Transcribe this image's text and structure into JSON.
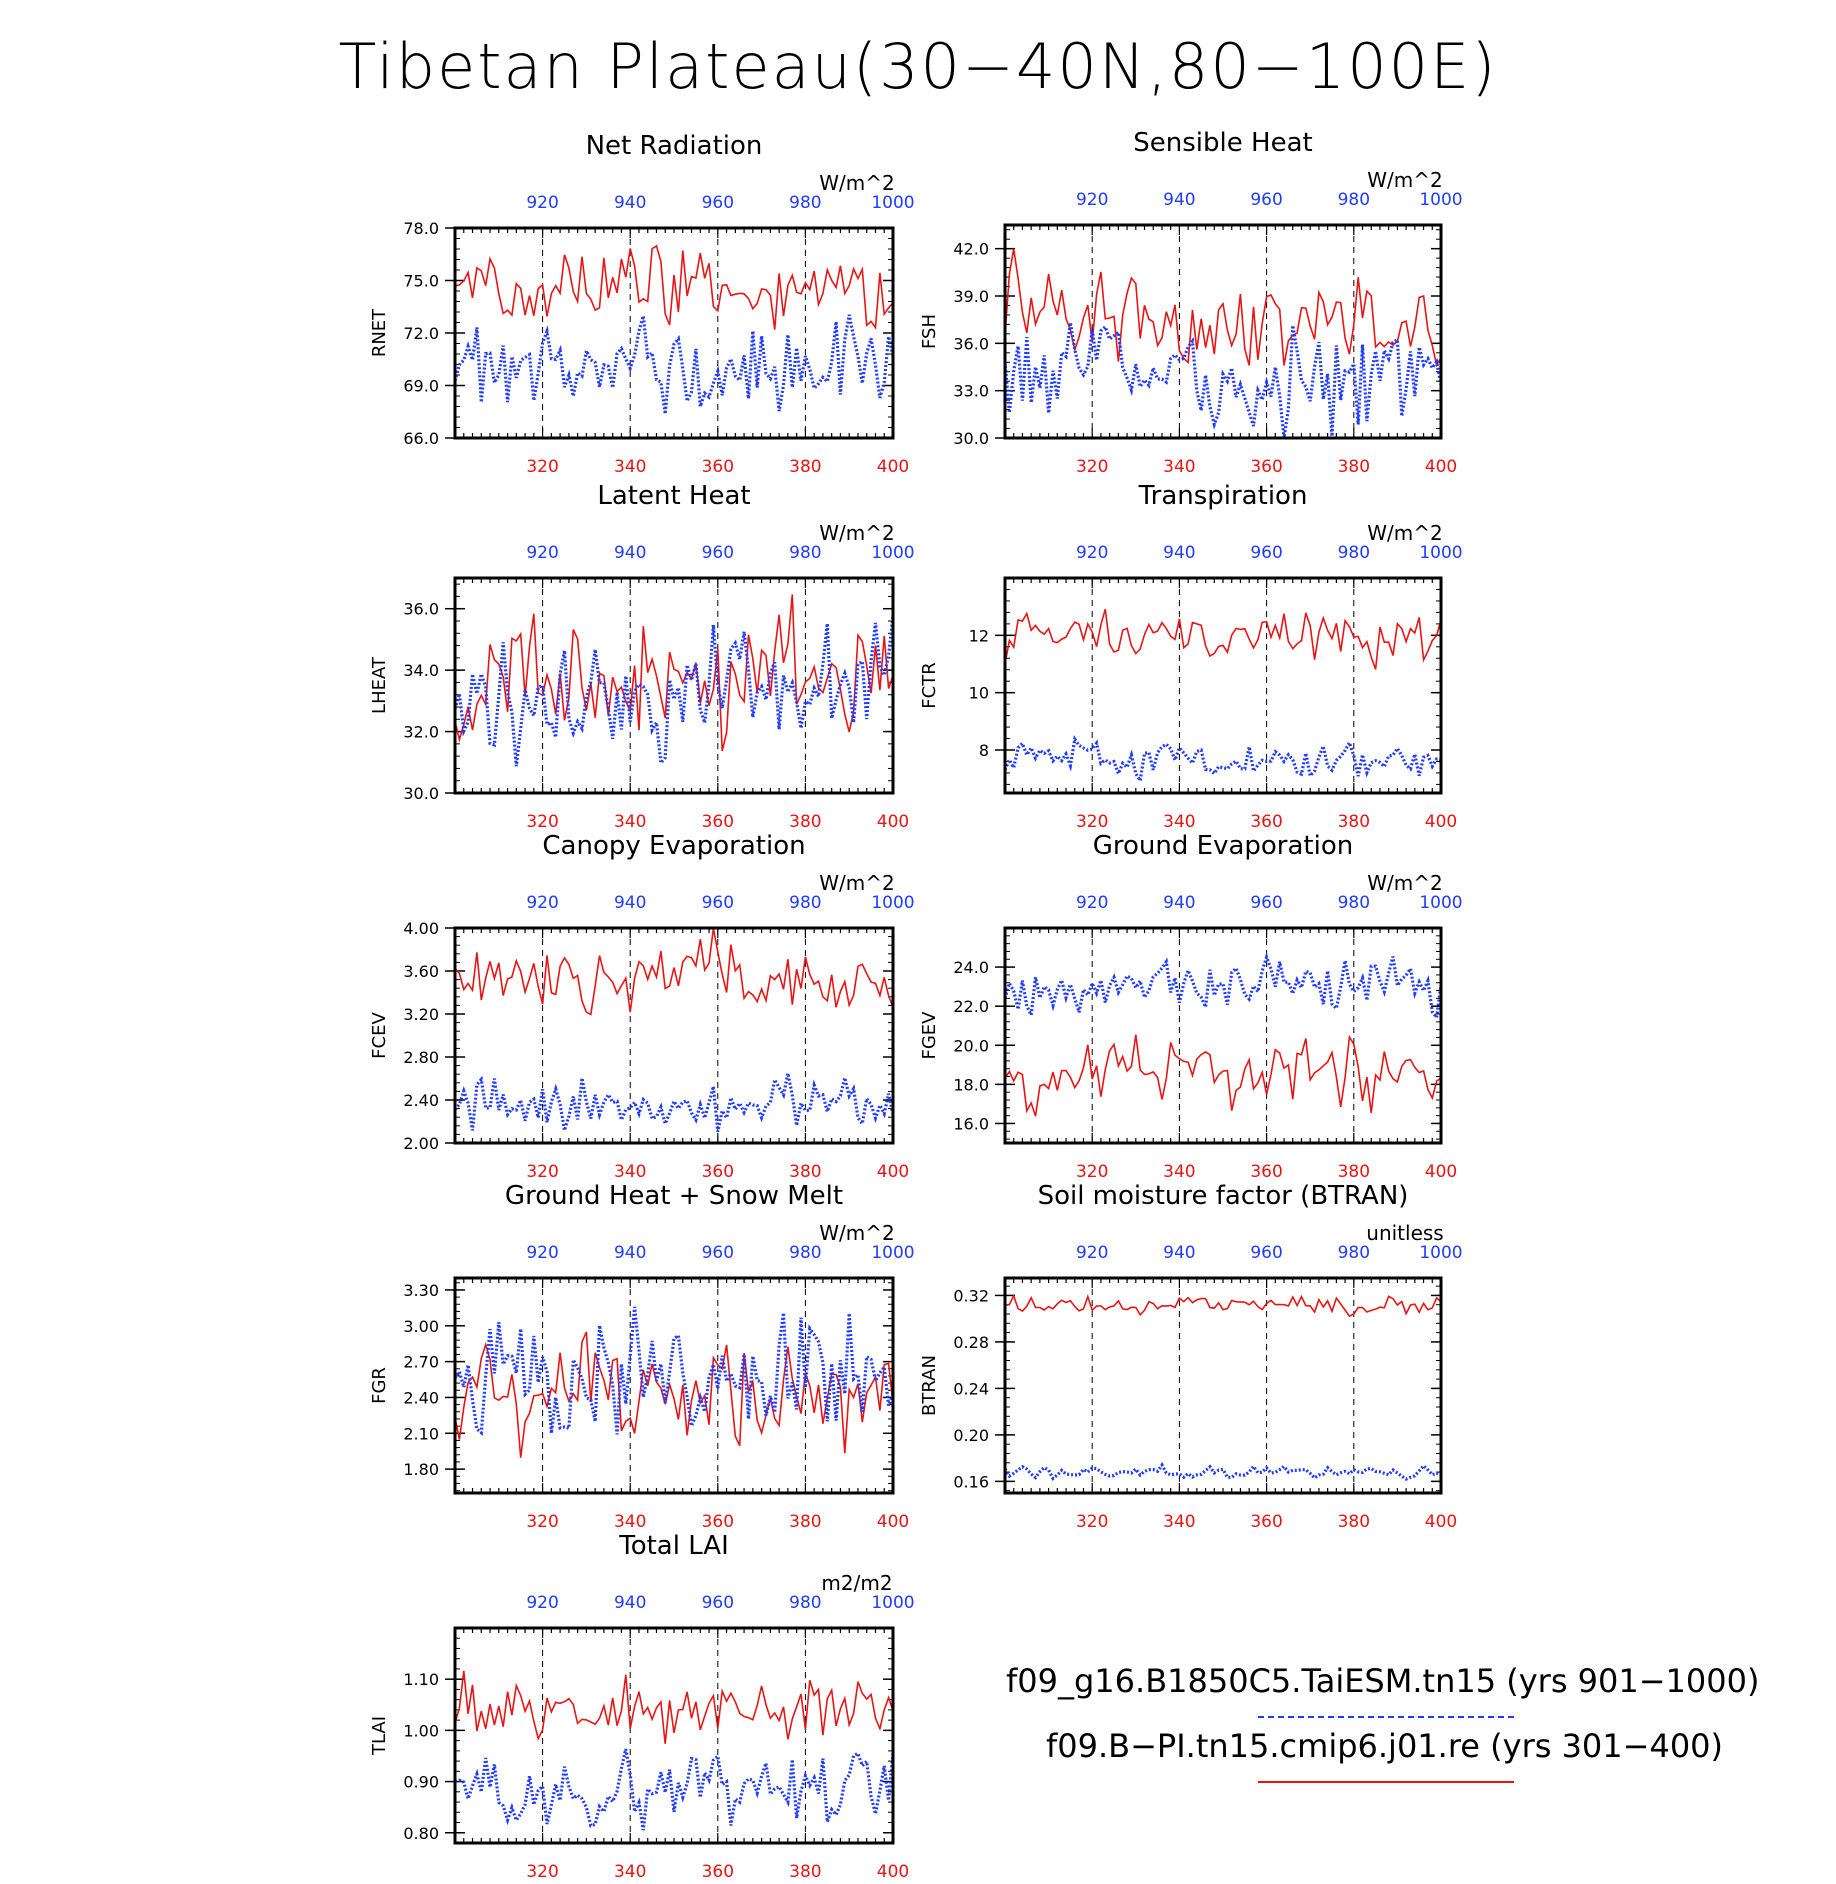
{
  "page": {
    "title": "Tibetan Plateau(30−40N,80−100E)",
    "legend": {
      "case1": {
        "label": "f09_g16.B1850C5.TaiESM.tn15 (yrs 901−1000)",
        "color": "#1f3cff",
        "style": "dashed"
      },
      "case2": {
        "label": "f09.B−PI.tn15.cmip6.j01.re (yrs 301−400)",
        "color": "#e81515",
        "style": "solid"
      }
    }
  },
  "chart_data": [
    {
      "type": "line",
      "title": "Net Radiation",
      "ylabel": "RNET",
      "units": "W/m^2",
      "ylim": [
        66.0,
        78.0
      ],
      "yticks": [
        "66.0",
        "69.0",
        "72.0",
        "75.0",
        "78.0"
      ],
      "x_bottom": {
        "range": [
          300,
          400
        ],
        "ticks": [
          320,
          340,
          360,
          380,
          400
        ]
      },
      "x_top": {
        "range": [
          900,
          1000
        ],
        "ticks": [
          920,
          940,
          960,
          980,
          1000
        ]
      },
      "series": [
        {
          "axis": "bottom",
          "style": "solid",
          "color": "#e81515",
          "mean": 74.6,
          "amp": 1.4,
          "seed": 11
        },
        {
          "axis": "top",
          "style": "dotted",
          "color": "#1f3cff",
          "mean": 70.3,
          "amp": 1.6,
          "seed": 12
        }
      ]
    },
    {
      "type": "line",
      "title": "Sensible Heat",
      "ylabel": "FSH",
      "units": "W/m^2",
      "ylim": [
        30.0,
        43.5
      ],
      "yticks": [
        "30.0",
        "33.0",
        "36.0",
        "39.0",
        "42.0"
      ],
      "x_bottom": {
        "range": [
          300,
          400
        ],
        "ticks": [
          320,
          340,
          360,
          380,
          400
        ]
      },
      "x_top": {
        "range": [
          900,
          1000
        ],
        "ticks": [
          920,
          940,
          960,
          980,
          1000
        ]
      },
      "series": [
        {
          "axis": "bottom",
          "style": "solid",
          "color": "#e81515",
          "mean": 37.6,
          "amp": 1.8,
          "seed": 21
        },
        {
          "axis": "top",
          "style": "dotted",
          "color": "#1f3cff",
          "mean": 34.3,
          "amp": 1.9,
          "seed": 22
        }
      ]
    },
    {
      "type": "line",
      "title": "Latent Heat",
      "ylabel": "LHEAT",
      "units": "W/m^2",
      "ylim": [
        30.0,
        37.0
      ],
      "yticks": [
        "30.0",
        "32.0",
        "34.0",
        "36.0"
      ],
      "x_bottom": {
        "range": [
          300,
          400
        ],
        "ticks": [
          320,
          340,
          360,
          380,
          400
        ]
      },
      "x_top": {
        "range": [
          900,
          1000
        ],
        "ticks": [
          920,
          940,
          960,
          980,
          1000
        ]
      },
      "series": [
        {
          "axis": "bottom",
          "style": "solid",
          "color": "#e81515",
          "mean": 33.9,
          "amp": 1.2,
          "seed": 31
        },
        {
          "axis": "top",
          "style": "dotted",
          "color": "#1f3cff",
          "mean": 33.2,
          "amp": 1.1,
          "seed": 32
        }
      ]
    },
    {
      "type": "line",
      "title": "Transpiration",
      "ylabel": "FCTR",
      "units": "W/m^2",
      "ylim": [
        6.5,
        14.0
      ],
      "yticks": [
        "8",
        "10",
        "12"
      ],
      "x_bottom": {
        "range": [
          300,
          400
        ],
        "ticks": [
          320,
          340,
          360,
          380,
          400
        ]
      },
      "x_top": {
        "range": [
          900,
          1000
        ],
        "ticks": [
          920,
          940,
          960,
          980,
          1000
        ]
      },
      "series": [
        {
          "axis": "bottom",
          "style": "solid",
          "color": "#e81515",
          "mean": 12.0,
          "amp": 0.5,
          "seed": 41
        },
        {
          "axis": "top",
          "style": "dotted",
          "color": "#1f3cff",
          "mean": 7.7,
          "amp": 0.35,
          "seed": 42
        }
      ]
    },
    {
      "type": "line",
      "title": "Canopy Evaporation",
      "ylabel": "FCEV",
      "units": "W/m^2",
      "ylim": [
        2.0,
        4.0
      ],
      "yticks": [
        "2.00",
        "2.40",
        "2.80",
        "3.20",
        "3.60",
        "4.00"
      ],
      "x_bottom": {
        "range": [
          300,
          400
        ],
        "ticks": [
          320,
          340,
          360,
          380,
          400
        ]
      },
      "x_top": {
        "range": [
          900,
          1000
        ],
        "ticks": [
          920,
          940,
          960,
          980,
          1000
        ]
      },
      "series": [
        {
          "axis": "bottom",
          "style": "solid",
          "color": "#e81515",
          "mean": 3.52,
          "amp": 0.2,
          "seed": 51
        },
        {
          "axis": "top",
          "style": "dotted",
          "color": "#1f3cff",
          "mean": 2.34,
          "amp": 0.15,
          "seed": 52
        }
      ]
    },
    {
      "type": "line",
      "title": "Ground Evaporation",
      "ylabel": "FGEV",
      "units": "W/m^2",
      "ylim": [
        15.0,
        26.0
      ],
      "yticks": [
        "16.0",
        "18.0",
        "20.0",
        "22.0",
        "24.0"
      ],
      "x_bottom": {
        "range": [
          300,
          400
        ],
        "ticks": [
          320,
          340,
          360,
          380,
          400
        ]
      },
      "x_top": {
        "range": [
          900,
          1000
        ],
        "ticks": [
          920,
          940,
          960,
          980,
          1000
        ]
      },
      "series": [
        {
          "axis": "bottom",
          "style": "solid",
          "color": "#e81515",
          "mean": 18.5,
          "amp": 1.1,
          "seed": 61
        },
        {
          "axis": "top",
          "style": "dotted",
          "color": "#1f3cff",
          "mean": 23.2,
          "amp": 0.9,
          "seed": 62
        }
      ]
    },
    {
      "type": "line",
      "title": "Ground Heat + Snow Melt",
      "ylabel": "FGR",
      "units": "W/m^2",
      "ylim": [
        1.6,
        3.4
      ],
      "yticks": [
        "1.80",
        "2.10",
        "2.40",
        "2.70",
        "3.00",
        "3.30"
      ],
      "x_bottom": {
        "range": [
          300,
          400
        ],
        "ticks": [
          320,
          340,
          360,
          380,
          400
        ]
      },
      "x_top": {
        "range": [
          900,
          1000
        ],
        "ticks": [
          920,
          940,
          960,
          980,
          1000
        ]
      },
      "series": [
        {
          "axis": "bottom",
          "style": "solid",
          "color": "#e81515",
          "mean": 2.45,
          "amp": 0.25,
          "seed": 71
        },
        {
          "axis": "top",
          "style": "dotted",
          "color": "#1f3cff",
          "mean": 2.55,
          "amp": 0.3,
          "seed": 72
        }
      ]
    },
    {
      "type": "line",
      "title": "Soil moisture factor (BTRAN)",
      "ylabel": "BTRAN",
      "units": "unitless",
      "ylim": [
        0.15,
        0.335
      ],
      "yticks": [
        "0.16",
        "0.20",
        "0.24",
        "0.28",
        "0.32"
      ],
      "x_bottom": {
        "range": [
          300,
          400
        ],
        "ticks": [
          320,
          340,
          360,
          380,
          400
        ]
      },
      "x_top": {
        "range": [
          900,
          1000
        ],
        "ticks": [
          920,
          940,
          960,
          980,
          1000
        ]
      },
      "series": [
        {
          "axis": "bottom",
          "style": "solid",
          "color": "#e81515",
          "mean": 0.311,
          "amp": 0.005,
          "seed": 81
        },
        {
          "axis": "top",
          "style": "dotted",
          "color": "#1f3cff",
          "mean": 0.168,
          "amp": 0.003,
          "seed": 82
        }
      ]
    },
    {
      "type": "line",
      "title": "Total LAI",
      "ylabel": "TLAI",
      "units": "m2/m2",
      "ylim": [
        0.78,
        1.2
      ],
      "yticks": [
        "0.80",
        "0.90",
        "1.00",
        "1.10"
      ],
      "x_bottom": {
        "range": [
          300,
          400
        ],
        "ticks": [
          320,
          340,
          360,
          380,
          400
        ]
      },
      "x_top": {
        "range": [
          900,
          1000
        ],
        "ticks": [
          920,
          940,
          960,
          980,
          1000
        ]
      },
      "series": [
        {
          "axis": "bottom",
          "style": "solid",
          "color": "#e81515",
          "mean": 1.04,
          "amp": 0.04,
          "seed": 91
        },
        {
          "axis": "top",
          "style": "dotted",
          "color": "#1f3cff",
          "mean": 0.89,
          "amp": 0.04,
          "seed": 92
        }
      ]
    }
  ]
}
